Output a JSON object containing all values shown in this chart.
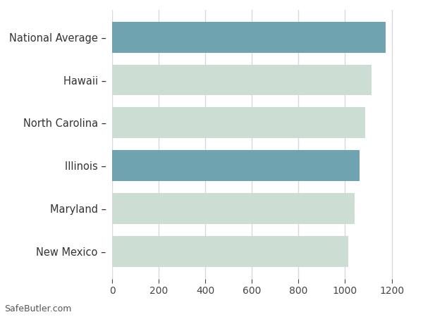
{
  "categories": [
    "New Mexico",
    "Maryland",
    "Illinois",
    "North Carolina",
    "Hawaii",
    "National Average"
  ],
  "values": [
    1013,
    1040,
    1063,
    1086,
    1113,
    1173
  ],
  "bar_colors": [
    "#ccddd4",
    "#ccddd4",
    "#6fa3b0",
    "#ccddd4",
    "#ccddd4",
    "#6fa3b0"
  ],
  "background_color": "#ffffff",
  "xlim": [
    0,
    1280
  ],
  "xticks": [
    0,
    200,
    400,
    600,
    800,
    1000,
    1200
  ],
  "grid_color": "#d8d8d8",
  "bar_height": 0.72,
  "footer_text": "SafeButler.com",
  "tick_fontsize": 10,
  "label_fontsize": 10.5,
  "label_color": "#333333"
}
